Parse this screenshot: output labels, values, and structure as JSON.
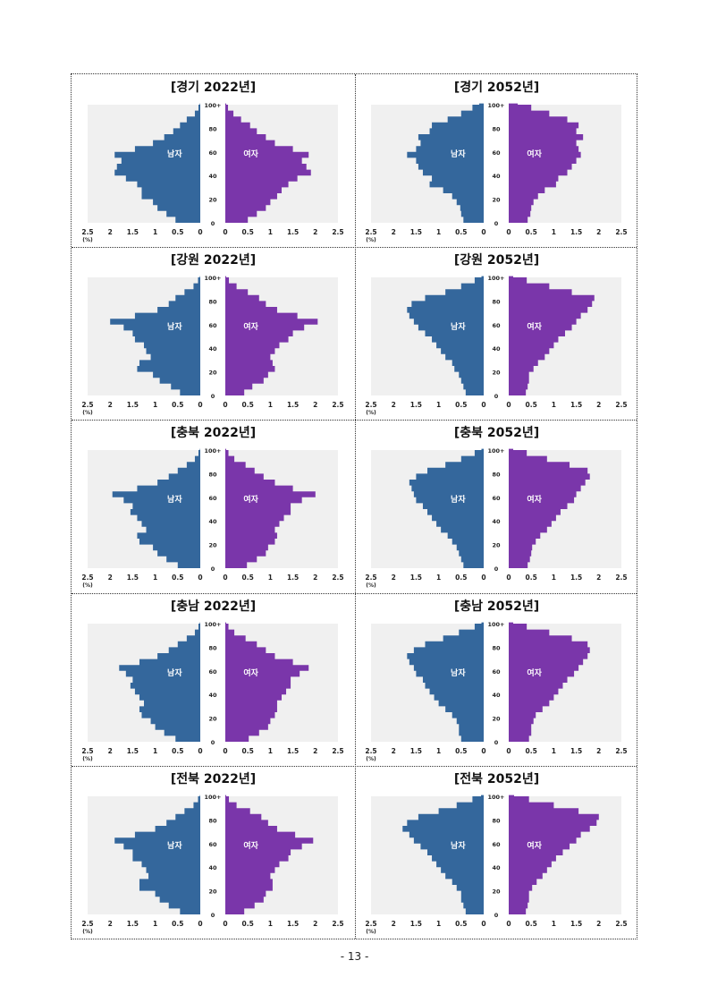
{
  "page_number": "- 13 -",
  "colors": {
    "male": "#34679c",
    "female": "#7a36aa",
    "plot_bg": "#f0f0f0"
  },
  "axis_labels": {
    "unit": "(%)",
    "age_ticks": [
      "0",
      "20",
      "40",
      "60",
      "80",
      "100+"
    ],
    "pct_ticks": [
      "0",
      "0.5",
      "1",
      "1.5",
      "2",
      "2.5"
    ],
    "male_label": "남자",
    "female_label": "여자"
  },
  "chart_data": [
    {
      "type": "population-pyramid",
      "title": "[경기 2022년]",
      "x_range": [
        0,
        2.5
      ],
      "y_range": [
        0,
        100
      ],
      "series": [
        {
          "name": "남자",
          "ages": [
            0,
            5,
            10,
            15,
            20,
            25,
            30,
            35,
            40,
            45,
            50,
            55,
            60,
            65,
            70,
            75,
            80,
            85,
            90,
            95,
            100
          ],
          "values": [
            0.55,
            0.75,
            0.95,
            1.05,
            1.3,
            1.3,
            1.4,
            1.65,
            1.9,
            1.85,
            1.75,
            1.9,
            1.45,
            1.05,
            0.8,
            0.6,
            0.45,
            0.3,
            0.12,
            0.04,
            0.01
          ]
        },
        {
          "name": "여자",
          "ages": [
            0,
            5,
            10,
            15,
            20,
            25,
            30,
            35,
            40,
            45,
            50,
            55,
            60,
            65,
            70,
            75,
            80,
            85,
            90,
            95,
            100
          ],
          "values": [
            0.5,
            0.7,
            0.9,
            1.0,
            1.15,
            1.25,
            1.4,
            1.6,
            1.9,
            1.8,
            1.7,
            1.85,
            1.5,
            1.1,
            0.9,
            0.7,
            0.55,
            0.35,
            0.18,
            0.06,
            0.02
          ]
        }
      ]
    },
    {
      "type": "population-pyramid",
      "title": "[경기 2052년]",
      "x_range": [
        0,
        2.5
      ],
      "y_range": [
        0,
        100
      ],
      "series": [
        {
          "name": "남자",
          "ages": [
            0,
            5,
            10,
            15,
            20,
            25,
            30,
            35,
            40,
            45,
            50,
            55,
            60,
            65,
            70,
            75,
            80,
            85,
            90,
            95,
            100
          ],
          "values": [
            0.45,
            0.5,
            0.52,
            0.6,
            0.7,
            0.9,
            1.2,
            1.15,
            1.35,
            1.45,
            1.5,
            1.7,
            1.5,
            1.4,
            1.45,
            1.2,
            1.15,
            0.8,
            0.5,
            0.25,
            0.1
          ]
        },
        {
          "name": "여자",
          "ages": [
            0,
            5,
            10,
            15,
            20,
            25,
            30,
            35,
            40,
            45,
            50,
            55,
            60,
            65,
            70,
            75,
            80,
            85,
            90,
            95,
            100
          ],
          "values": [
            0.42,
            0.48,
            0.5,
            0.55,
            0.65,
            0.8,
            1.05,
            1.1,
            1.3,
            1.4,
            1.5,
            1.6,
            1.55,
            1.5,
            1.65,
            1.5,
            1.55,
            1.3,
            0.9,
            0.5,
            0.2
          ]
        }
      ]
    },
    {
      "type": "population-pyramid",
      "title": "[강원 2022년]",
      "x_range": [
        0,
        2.5
      ],
      "y_range": [
        0,
        100
      ],
      "series": [
        {
          "name": "남자",
          "ages": [
            0,
            5,
            10,
            15,
            20,
            25,
            30,
            35,
            40,
            45,
            50,
            55,
            60,
            65,
            70,
            75,
            80,
            85,
            90,
            95,
            100
          ],
          "values": [
            0.45,
            0.65,
            0.9,
            1.05,
            1.4,
            1.35,
            1.1,
            1.2,
            1.25,
            1.45,
            1.5,
            1.7,
            2.0,
            1.45,
            0.95,
            0.7,
            0.55,
            0.35,
            0.15,
            0.05,
            0.01
          ]
        },
        {
          "name": "여자",
          "ages": [
            0,
            5,
            10,
            15,
            20,
            25,
            30,
            35,
            40,
            45,
            50,
            55,
            60,
            65,
            70,
            75,
            80,
            85,
            90,
            95,
            100
          ],
          "values": [
            0.42,
            0.6,
            0.85,
            0.95,
            1.1,
            1.05,
            1.0,
            1.1,
            1.2,
            1.4,
            1.5,
            1.75,
            2.05,
            1.6,
            1.15,
            0.9,
            0.75,
            0.5,
            0.25,
            0.08,
            0.02
          ]
        }
      ]
    },
    {
      "type": "population-pyramid",
      "title": "[강원 2052년]",
      "x_range": [
        0,
        2.5
      ],
      "y_range": [
        0,
        100
      ],
      "series": [
        {
          "name": "남자",
          "ages": [
            0,
            5,
            10,
            15,
            20,
            25,
            30,
            35,
            40,
            45,
            50,
            55,
            60,
            65,
            70,
            75,
            80,
            85,
            90,
            95,
            100
          ],
          "values": [
            0.4,
            0.45,
            0.5,
            0.55,
            0.65,
            0.7,
            0.85,
            0.95,
            1.05,
            1.15,
            1.3,
            1.45,
            1.55,
            1.65,
            1.7,
            1.6,
            1.3,
            0.85,
            0.5,
            0.2,
            0.05
          ]
        },
        {
          "name": "여자",
          "ages": [
            0,
            5,
            10,
            15,
            20,
            25,
            30,
            35,
            40,
            45,
            50,
            55,
            60,
            65,
            70,
            75,
            80,
            85,
            90,
            95,
            100
          ],
          "values": [
            0.38,
            0.42,
            0.45,
            0.45,
            0.55,
            0.65,
            0.8,
            0.9,
            1.0,
            1.1,
            1.25,
            1.4,
            1.5,
            1.6,
            1.75,
            1.85,
            1.9,
            1.4,
            0.9,
            0.4,
            0.1
          ]
        }
      ]
    },
    {
      "type": "population-pyramid",
      "title": "[충북 2022년]",
      "x_range": [
        0,
        2.5
      ],
      "y_range": [
        0,
        100
      ],
      "series": [
        {
          "name": "남자",
          "ages": [
            0,
            5,
            10,
            15,
            20,
            25,
            30,
            35,
            40,
            45,
            50,
            55,
            60,
            65,
            70,
            75,
            80,
            85,
            90,
            95,
            100
          ],
          "values": [
            0.5,
            0.75,
            0.95,
            1.05,
            1.35,
            1.4,
            1.2,
            1.3,
            1.4,
            1.55,
            1.5,
            1.7,
            1.95,
            1.4,
            0.95,
            0.7,
            0.5,
            0.3,
            0.12,
            0.04,
            0.01
          ]
        },
        {
          "name": "여자",
          "ages": [
            0,
            5,
            10,
            15,
            20,
            25,
            30,
            35,
            40,
            45,
            50,
            55,
            60,
            65,
            70,
            75,
            80,
            85,
            90,
            95,
            100
          ],
          "values": [
            0.48,
            0.7,
            0.9,
            0.95,
            1.1,
            1.15,
            1.1,
            1.2,
            1.3,
            1.45,
            1.45,
            1.7,
            2.0,
            1.5,
            1.1,
            0.85,
            0.65,
            0.45,
            0.2,
            0.07,
            0.02
          ]
        }
      ]
    },
    {
      "type": "population-pyramid",
      "title": "[충북 2052년]",
      "x_range": [
        0,
        2.5
      ],
      "y_range": [
        0,
        100
      ],
      "series": [
        {
          "name": "남자",
          "ages": [
            0,
            5,
            10,
            15,
            20,
            25,
            30,
            35,
            40,
            45,
            50,
            55,
            60,
            65,
            70,
            75,
            80,
            85,
            90,
            95,
            100
          ],
          "values": [
            0.45,
            0.5,
            0.55,
            0.6,
            0.7,
            0.8,
            0.95,
            1.05,
            1.15,
            1.25,
            1.35,
            1.5,
            1.55,
            1.6,
            1.65,
            1.5,
            1.25,
            0.85,
            0.5,
            0.2,
            0.05
          ]
        },
        {
          "name": "여자",
          "ages": [
            0,
            5,
            10,
            15,
            20,
            25,
            30,
            35,
            40,
            45,
            50,
            55,
            60,
            65,
            70,
            75,
            80,
            85,
            90,
            95,
            100
          ],
          "values": [
            0.42,
            0.47,
            0.5,
            0.52,
            0.6,
            0.7,
            0.85,
            0.95,
            1.05,
            1.15,
            1.3,
            1.45,
            1.5,
            1.6,
            1.7,
            1.8,
            1.75,
            1.35,
            0.85,
            0.4,
            0.1
          ]
        }
      ]
    },
    {
      "type": "population-pyramid",
      "title": "[충남 2022년]",
      "x_range": [
        0,
        2.5
      ],
      "y_range": [
        0,
        100
      ],
      "series": [
        {
          "name": "남자",
          "ages": [
            0,
            5,
            10,
            15,
            20,
            25,
            30,
            35,
            40,
            45,
            50,
            55,
            60,
            65,
            70,
            75,
            80,
            85,
            90,
            95,
            100
          ],
          "values": [
            0.55,
            0.8,
            1.0,
            1.1,
            1.3,
            1.35,
            1.25,
            1.35,
            1.45,
            1.55,
            1.5,
            1.65,
            1.8,
            1.35,
            0.95,
            0.7,
            0.5,
            0.3,
            0.12,
            0.04,
            0.01
          ]
        },
        {
          "name": "여자",
          "ages": [
            0,
            5,
            10,
            15,
            20,
            25,
            30,
            35,
            40,
            45,
            50,
            55,
            60,
            65,
            70,
            75,
            80,
            85,
            90,
            95,
            100
          ],
          "values": [
            0.52,
            0.75,
            0.95,
            1.0,
            1.1,
            1.15,
            1.15,
            1.25,
            1.35,
            1.45,
            1.45,
            1.65,
            1.85,
            1.5,
            1.1,
            0.9,
            0.7,
            0.45,
            0.2,
            0.07,
            0.02
          ]
        }
      ]
    },
    {
      "type": "population-pyramid",
      "title": "[충남 2052년]",
      "x_range": [
        0,
        2.5
      ],
      "y_range": [
        0,
        100
      ],
      "series": [
        {
          "name": "남자",
          "ages": [
            0,
            5,
            10,
            15,
            20,
            25,
            30,
            35,
            40,
            45,
            50,
            55,
            60,
            65,
            70,
            75,
            80,
            85,
            90,
            95,
            100
          ],
          "values": [
            0.5,
            0.55,
            0.55,
            0.6,
            0.7,
            0.85,
            1.0,
            1.1,
            1.2,
            1.3,
            1.35,
            1.5,
            1.55,
            1.65,
            1.7,
            1.55,
            1.3,
            0.9,
            0.55,
            0.2,
            0.05
          ]
        },
        {
          "name": "여자",
          "ages": [
            0,
            5,
            10,
            15,
            20,
            25,
            30,
            35,
            40,
            45,
            50,
            55,
            60,
            65,
            70,
            75,
            80,
            85,
            90,
            95,
            100
          ],
          "values": [
            0.45,
            0.5,
            0.5,
            0.55,
            0.6,
            0.75,
            0.9,
            1.0,
            1.1,
            1.2,
            1.3,
            1.45,
            1.55,
            1.65,
            1.75,
            1.8,
            1.75,
            1.4,
            0.9,
            0.4,
            0.1
          ]
        }
      ]
    },
    {
      "type": "population-pyramid",
      "title": "[전북 2022년]",
      "x_range": [
        0,
        2.5
      ],
      "y_range": [
        0,
        100
      ],
      "series": [
        {
          "name": "남자",
          "ages": [
            0,
            5,
            10,
            15,
            20,
            25,
            30,
            35,
            40,
            45,
            50,
            55,
            60,
            65,
            70,
            75,
            80,
            85,
            90,
            95,
            100
          ],
          "values": [
            0.45,
            0.7,
            0.9,
            1.0,
            1.35,
            1.35,
            1.15,
            1.2,
            1.3,
            1.5,
            1.5,
            1.7,
            1.9,
            1.45,
            1.0,
            0.75,
            0.55,
            0.35,
            0.15,
            0.05,
            0.01
          ]
        },
        {
          "name": "여자",
          "ages": [
            0,
            5,
            10,
            15,
            20,
            25,
            30,
            35,
            40,
            45,
            50,
            55,
            60,
            65,
            70,
            75,
            80,
            85,
            90,
            95,
            100
          ],
          "values": [
            0.42,
            0.65,
            0.85,
            0.9,
            1.05,
            1.05,
            1.0,
            1.1,
            1.2,
            1.4,
            1.45,
            1.7,
            1.95,
            1.55,
            1.15,
            0.95,
            0.8,
            0.55,
            0.25,
            0.08,
            0.02
          ]
        }
      ]
    },
    {
      "type": "population-pyramid",
      "title": "[전북 2052년]",
      "x_range": [
        0,
        2.5
      ],
      "y_range": [
        0,
        100
      ],
      "series": [
        {
          "name": "남자",
          "ages": [
            0,
            5,
            10,
            15,
            20,
            25,
            30,
            35,
            40,
            45,
            50,
            55,
            60,
            65,
            70,
            75,
            80,
            85,
            90,
            95,
            100
          ],
          "values": [
            0.4,
            0.45,
            0.5,
            0.5,
            0.6,
            0.7,
            0.85,
            0.95,
            1.05,
            1.15,
            1.25,
            1.4,
            1.55,
            1.65,
            1.8,
            1.7,
            1.45,
            1.0,
            0.6,
            0.25,
            0.06
          ]
        },
        {
          "name": "여자",
          "ages": [
            0,
            5,
            10,
            15,
            20,
            25,
            30,
            35,
            40,
            45,
            50,
            55,
            60,
            65,
            70,
            75,
            80,
            85,
            90,
            95,
            100
          ],
          "values": [
            0.38,
            0.42,
            0.45,
            0.45,
            0.52,
            0.62,
            0.75,
            0.85,
            0.95,
            1.05,
            1.2,
            1.35,
            1.5,
            1.6,
            1.8,
            1.95,
            2.0,
            1.55,
            1.0,
            0.45,
            0.12
          ]
        }
      ]
    }
  ]
}
